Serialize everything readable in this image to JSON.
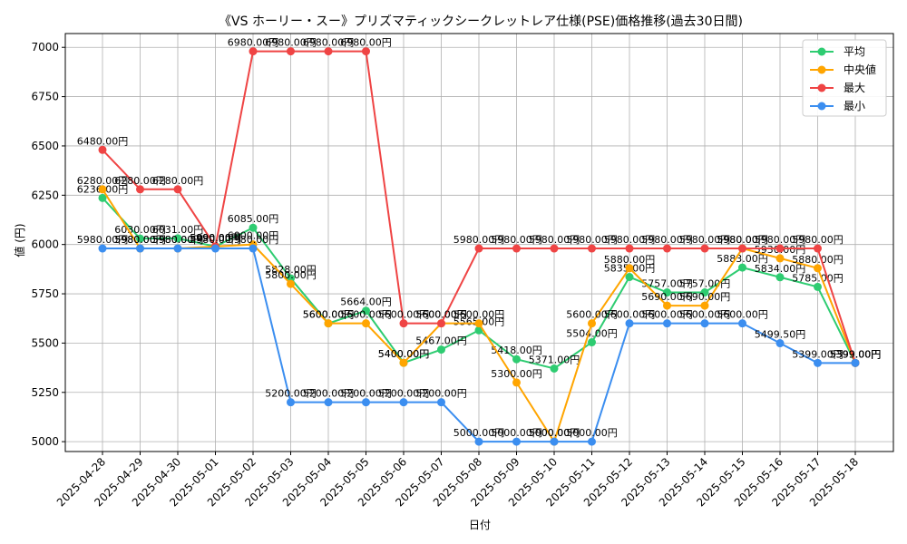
{
  "chart_data": {
    "type": "line",
    "title": "《VS ホーリー・スー》プリズマティックシークレットレア仕様(PSE)価格推移(過去30日間)",
    "xlabel": "日付",
    "ylabel": "値 (円)",
    "ylim": [
      4950,
      7070
    ],
    "yticks": [
      5000,
      5250,
      5500,
      5750,
      6000,
      6250,
      6500,
      6750,
      7000
    ],
    "grid": true,
    "legend_position": "top-right",
    "categories": [
      "2025-04-28",
      "2025-04-29",
      "2025-04-30",
      "2025-05-01",
      "2025-05-02",
      "2025-05-03",
      "2025-05-04",
      "2025-05-05",
      "2025-05-06",
      "2025-05-07",
      "2025-05-08",
      "2025-05-09",
      "2025-05-10",
      "2025-05-11",
      "2025-05-12",
      "2025-05-13",
      "2025-05-14",
      "2025-05-15",
      "2025-05-16",
      "2025-05-17",
      "2025-05-18"
    ],
    "series": [
      {
        "name": "平均",
        "color": "#2ecc71",
        "values": [
          6236,
          6030,
          6031,
          5990,
          6085,
          5828,
          5600,
          5664,
          5400,
          5467,
          5565,
          5418,
          5371,
          5504,
          5835,
          5757,
          5757,
          5883,
          5834,
          5785,
          5399
        ],
        "labels": [
          "6236.00円",
          "6030.00円",
          "6031.00円",
          "5990.00円",
          "6085.00円",
          "5828.00円",
          "5600.00円",
          "5664.00円",
          "5400.00円",
          "5467.00円",
          "5565.00円",
          "5418.00円",
          "5371.00円",
          "5504.00円",
          "5835.00円",
          "5757.00円",
          "5757.00円",
          "5883.00円",
          "5834.00円",
          "5785.00円",
          "5399.00円"
        ]
      },
      {
        "name": "中央値",
        "color": "#ffa500",
        "values": [
          6280,
          5980,
          5980,
          5990,
          6000,
          5800,
          5600,
          5600,
          5400,
          5600,
          5600,
          5300,
          5000,
          5600,
          5880,
          5690,
          5690,
          5980,
          5930,
          5880,
          5399
        ],
        "labels": [
          "6280.00円",
          "5980.00円",
          "5980.00円",
          "5990.00円",
          "6000.00円",
          "5800.00円",
          "5600.00円",
          "5600.00円",
          "5400.00円",
          "5600.00円",
          "5600.00円",
          "5300.00円",
          "5000.00円",
          "5600.00円",
          "5880.00円",
          "5690.00円",
          "5690.00円",
          "5980.00円",
          "5930.00円",
          "5880.00円",
          "5399.00円"
        ]
      },
      {
        "name": "最大",
        "color": "#ef4444",
        "values": [
          6480,
          6280,
          6280,
          5990,
          6980,
          6980,
          6980,
          6980,
          5600,
          5600,
          5980,
          5980,
          5980,
          5980,
          5980,
          5980,
          5980,
          5980,
          5980,
          5980,
          5399
        ],
        "labels": [
          "6480.00円",
          "6280.00円",
          "6280.00円",
          "5990.00円",
          "6980.00円",
          "6980.00円",
          "6980.00円",
          "6980.00円",
          "5600.00円",
          "5600.00円",
          "5980.00円",
          "5980.00円",
          "5980.00円",
          "5980.00円",
          "5980.00円",
          "5980.00円",
          "5980.00円",
          "5980.00円",
          "5980.00円",
          "5980.00円",
          "5399.00円"
        ]
      },
      {
        "name": "最小",
        "color": "#3b8ef0",
        "values": [
          5980,
          5980,
          5980,
          5980,
          5980,
          5200,
          5200,
          5200,
          5200,
          5200,
          5000,
          5000,
          5000,
          5000,
          5600,
          5600,
          5600,
          5600,
          5499.5,
          5399,
          5399
        ],
        "labels": [
          "5980.00円",
          "5980.00円",
          "5980.00円",
          "5980.00円",
          "5980.00円",
          "5200.00円",
          "5200.00円",
          "5200.00円",
          "5200.00円",
          "5200.00円",
          "5000.00円",
          "5000.00円",
          "5000.00円",
          "5000.00円",
          "5600.00円",
          "5600.00円",
          "5600.00円",
          "5600.00円",
          "5499.50円",
          "5399.00円",
          "5399.00円"
        ]
      }
    ]
  }
}
